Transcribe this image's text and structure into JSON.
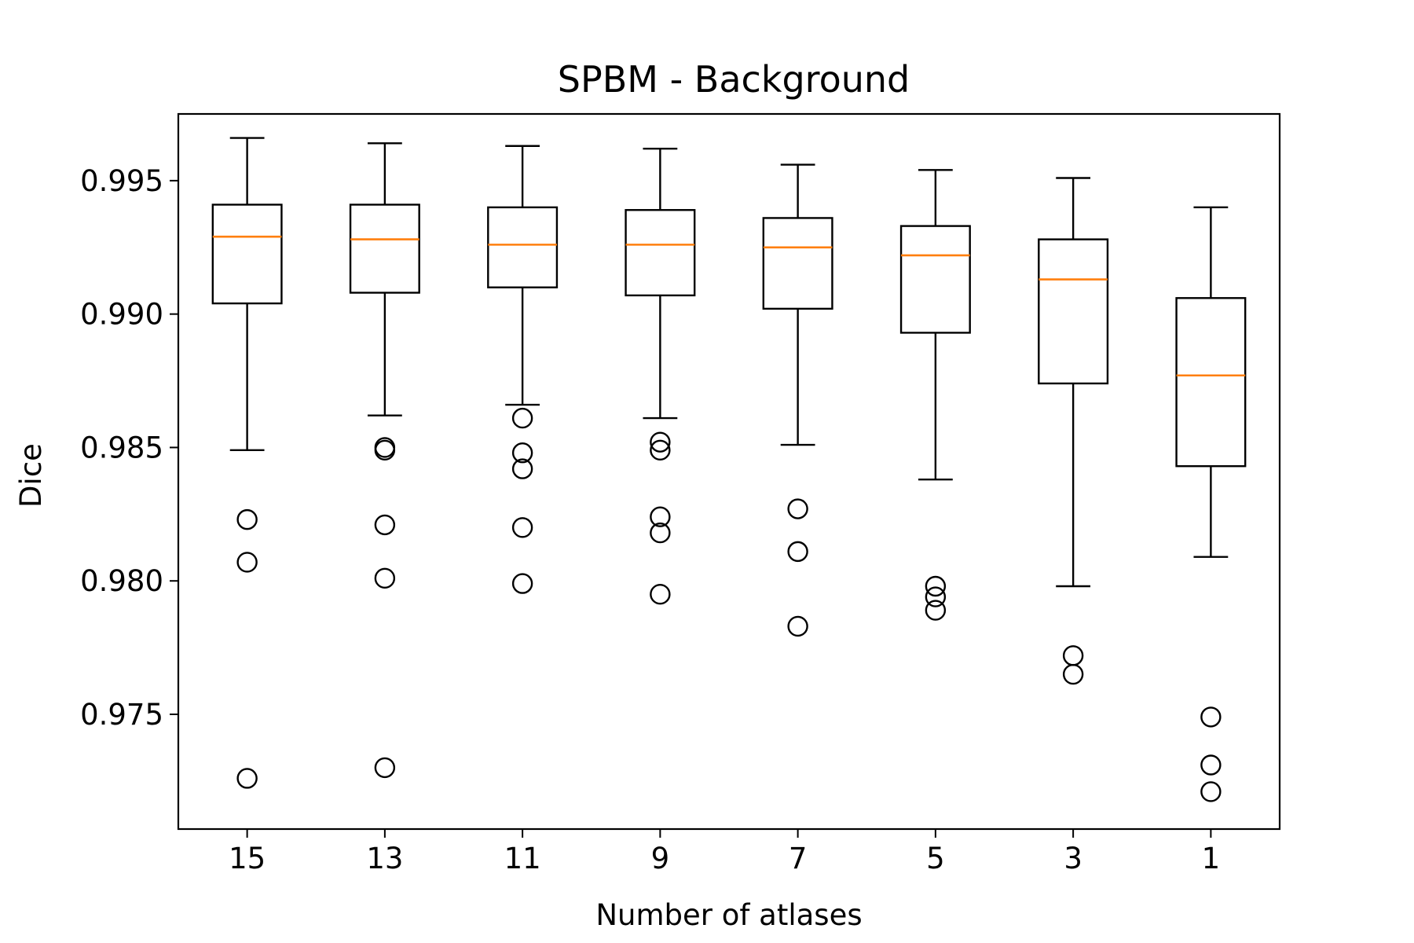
{
  "chart_data": {
    "type": "box",
    "title": "SPBM - Background",
    "xlabel": "Number of atlases",
    "ylabel": "Dice",
    "categories": [
      "15",
      "13",
      "11",
      "9",
      "7",
      "5",
      "3",
      "1"
    ],
    "ylim": [
      0.9707,
      0.9975
    ],
    "yticks": [
      0.975,
      0.98,
      0.985,
      0.99,
      0.995
    ],
    "ytick_labels": [
      "0.975",
      "0.980",
      "0.985",
      "0.990",
      "0.995"
    ],
    "grid": false,
    "colors": {
      "box": "#000000",
      "median": "#ff7f0e",
      "flier": "#000000"
    },
    "boxes": [
      {
        "category": "15",
        "whisker_low": 0.9849,
        "q1": 0.9904,
        "median": 0.9929,
        "q3": 0.9941,
        "whisker_high": 0.9966,
        "outliers": [
          0.9823,
          0.9807,
          0.9726
        ]
      },
      {
        "category": "13",
        "whisker_low": 0.9862,
        "q1": 0.9908,
        "median": 0.9928,
        "q3": 0.9941,
        "whisker_high": 0.9964,
        "outliers": [
          0.985,
          0.9849,
          0.9821,
          0.9801,
          0.973
        ]
      },
      {
        "category": "11",
        "whisker_low": 0.9866,
        "q1": 0.991,
        "median": 0.9926,
        "q3": 0.994,
        "whisker_high": 0.9963,
        "outliers": [
          0.9861,
          0.9848,
          0.9842,
          0.982,
          0.9799
        ]
      },
      {
        "category": "9",
        "whisker_low": 0.9861,
        "q1": 0.9907,
        "median": 0.9926,
        "q3": 0.9939,
        "whisker_high": 0.9962,
        "outliers": [
          0.9852,
          0.9849,
          0.9824,
          0.9818,
          0.9795
        ]
      },
      {
        "category": "7",
        "whisker_low": 0.9851,
        "q1": 0.9902,
        "median": 0.9925,
        "q3": 0.9936,
        "whisker_high": 0.9956,
        "outliers": [
          0.9827,
          0.9811,
          0.9783
        ]
      },
      {
        "category": "5",
        "whisker_low": 0.9838,
        "q1": 0.9893,
        "median": 0.9922,
        "q3": 0.9933,
        "whisker_high": 0.9954,
        "outliers": [
          0.9798,
          0.9794,
          0.9789
        ]
      },
      {
        "category": "3",
        "whisker_low": 0.9798,
        "q1": 0.9874,
        "median": 0.9913,
        "q3": 0.9928,
        "whisker_high": 0.9951,
        "outliers": [
          0.9772,
          0.9765
        ]
      },
      {
        "category": "1",
        "whisker_low": 0.9809,
        "q1": 0.9843,
        "median": 0.9877,
        "q3": 0.9906,
        "whisker_high": 0.994,
        "outliers": [
          0.9749,
          0.9731,
          0.9721
        ]
      }
    ]
  }
}
